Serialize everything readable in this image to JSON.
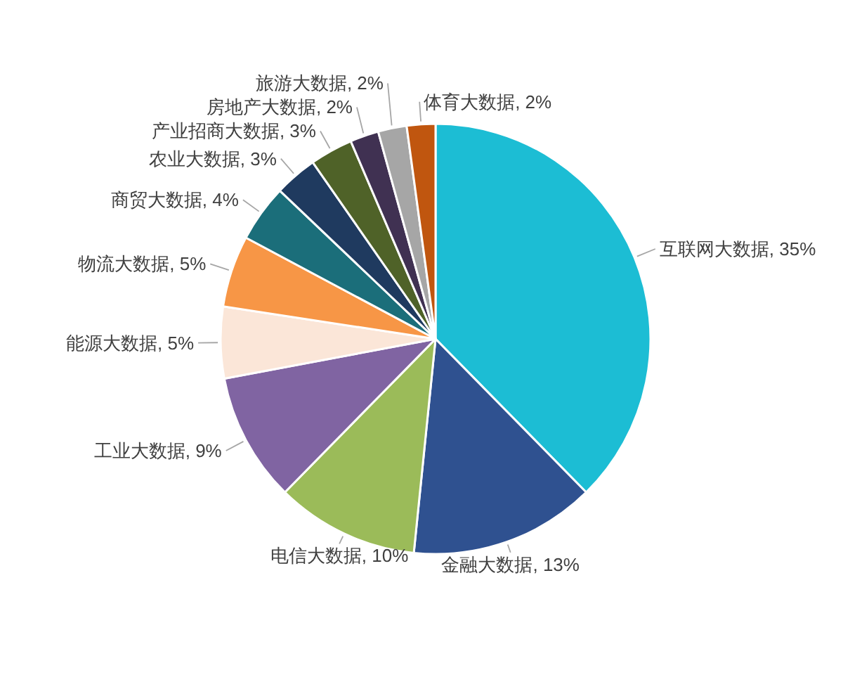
{
  "chart_data": {
    "type": "pie",
    "categories": [
      "互联网大数据",
      "金融大数据",
      "电信大数据",
      "工业大数据",
      "能源大数据",
      "物流大数据",
      "商贸大数据",
      "农业大数据",
      "产业招商大数据",
      "房地产大数据",
      "旅游大数据",
      "体育大数据"
    ],
    "values": [
      35,
      13,
      10,
      9,
      5,
      5,
      4,
      3,
      3,
      2,
      2,
      2
    ],
    "value_labels": [
      "35%",
      "13%",
      "10%",
      "9%",
      "5%",
      "5%",
      "4%",
      "3%",
      "3%",
      "2%",
      "2%",
      "2%"
    ],
    "colors": [
      "#1cbdd4",
      "#2f5190",
      "#9bbb59",
      "#8064a2",
      "#fbe6d8",
      "#f79646",
      "#1b6e7a",
      "#1f3a5f",
      "#4f6228",
      "#403152",
      "#a6a6a6",
      "#c0560f"
    ]
  }
}
